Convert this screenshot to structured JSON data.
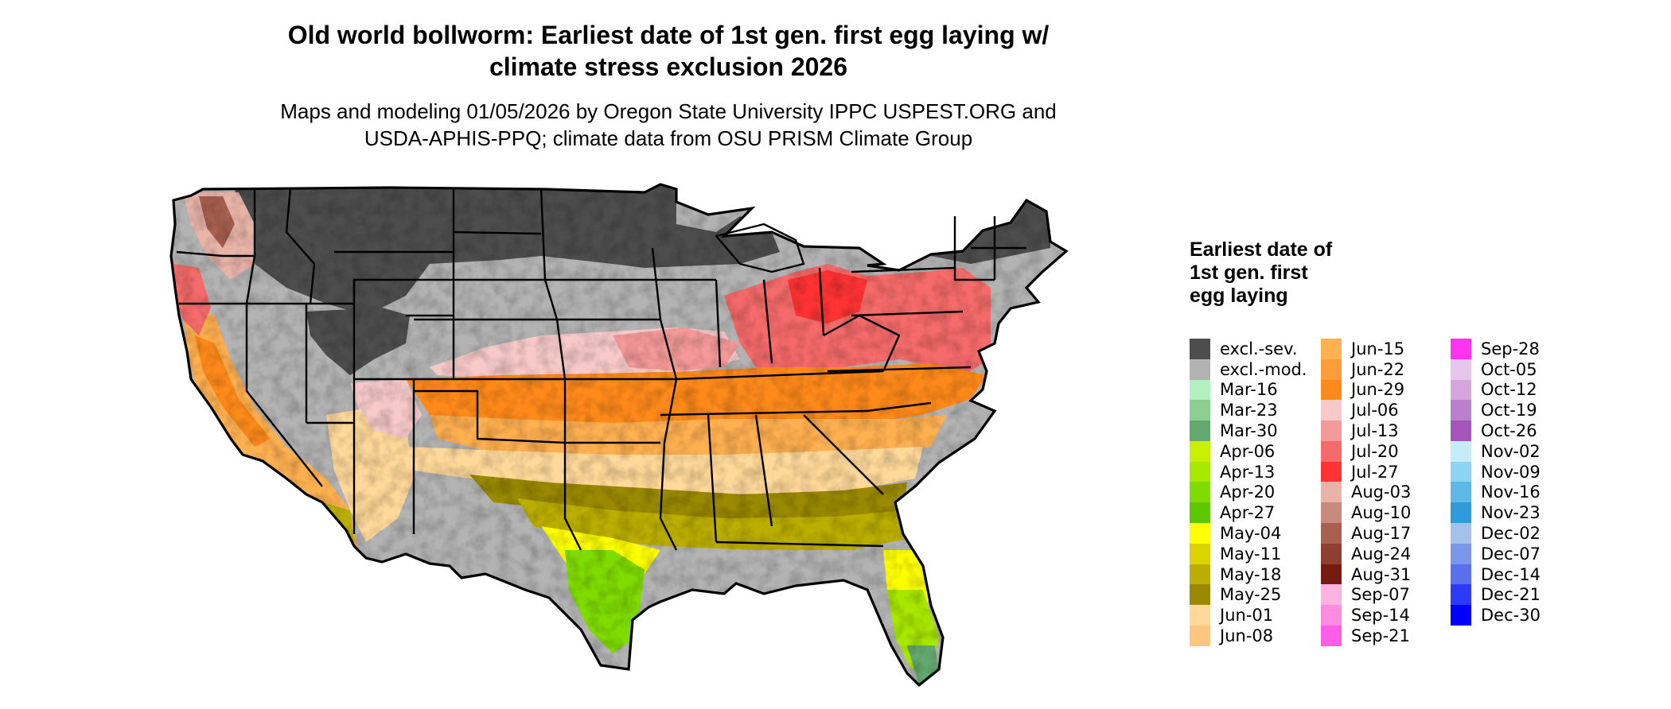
{
  "title_line1": "Old world bollworm: Earliest date of 1st gen. first egg laying w/",
  "title_line2": "climate stress exclusion 2026",
  "subtitle_line1": "Maps and modeling 01/05/2026 by Oregon State University IPPC USPEST.ORG and",
  "subtitle_line2": "USDA-APHIS-PPQ; climate data from OSU PRISM Climate Group",
  "legend": {
    "title": "Earliest date of 1st gen. first egg laying",
    "columns": [
      [
        {
          "label": "excl.-sev.",
          "color": "#4d4d4d"
        },
        {
          "label": "excl.-mod.",
          "color": "#b3b3b3"
        },
        {
          "label": "Mar-16",
          "color": "#b2f0bf"
        },
        {
          "label": "Mar-23",
          "color": "#8ccf91"
        },
        {
          "label": "Mar-30",
          "color": "#63a86e"
        },
        {
          "label": "Apr-06",
          "color": "#c8f000"
        },
        {
          "label": "Apr-13",
          "color": "#a8e800"
        },
        {
          "label": "Apr-20",
          "color": "#80dc00"
        },
        {
          "label": "Apr-27",
          "color": "#5cc800"
        },
        {
          "label": "May-04",
          "color": "#ffff00"
        },
        {
          "label": "May-11",
          "color": "#dcd400"
        },
        {
          "label": "May-18",
          "color": "#bbae00"
        },
        {
          "label": "May-25",
          "color": "#9a8a00"
        },
        {
          "label": "Jun-01",
          "color": "#ffd99a"
        },
        {
          "label": "Jun-08",
          "color": "#ffc680"
        }
      ],
      [
        {
          "label": "Jun-15",
          "color": "#ffb050"
        },
        {
          "label": "Jun-22",
          "color": "#ff9d3a"
        },
        {
          "label": "Jun-29",
          "color": "#ff8a1a"
        },
        {
          "label": "Jul-06",
          "color": "#f7c9c9"
        },
        {
          "label": "Jul-13",
          "color": "#f59a9a"
        },
        {
          "label": "Jul-20",
          "color": "#f56a6a"
        },
        {
          "label": "Jul-27",
          "color": "#ff3333"
        },
        {
          "label": "Aug-03",
          "color": "#e8b4a8"
        },
        {
          "label": "Aug-10",
          "color": "#c88a7c"
        },
        {
          "label": "Aug-17",
          "color": "#a86050"
        },
        {
          "label": "Aug-24",
          "color": "#8e3f30"
        },
        {
          "label": "Aug-31",
          "color": "#771a10"
        },
        {
          "label": "Sep-07",
          "color": "#ffb3e0"
        },
        {
          "label": "Sep-14",
          "color": "#ff8ce0"
        },
        {
          "label": "Sep-21",
          "color": "#ff5ce8"
        }
      ],
      [
        {
          "label": "Sep-28",
          "color": "#ff33f0"
        },
        {
          "label": "Oct-05",
          "color": "#e6c6ea"
        },
        {
          "label": "Oct-12",
          "color": "#d4a6dc"
        },
        {
          "label": "Oct-19",
          "color": "#bb80cc"
        },
        {
          "label": "Oct-26",
          "color": "#a455bb"
        },
        {
          "label": "Nov-02",
          "color": "#c6ecfa"
        },
        {
          "label": "Nov-09",
          "color": "#8ed4f2"
        },
        {
          "label": "Nov-16",
          "color": "#5cb8e6"
        },
        {
          "label": "Nov-23",
          "color": "#2e9cd8"
        },
        {
          "label": "Dec-02",
          "color": "#a6c0ec"
        },
        {
          "label": "Dec-07",
          "color": "#7c96ec"
        },
        {
          "label": "Dec-14",
          "color": "#5a6eee"
        },
        {
          "label": "Dec-21",
          "color": "#2c3cf2"
        },
        {
          "label": "Dec-30",
          "color": "#0000ff"
        }
      ]
    ]
  },
  "map": {
    "exclusion_severe_color": "#4d4d4d",
    "exclusion_moderate_color": "#b3b3b3",
    "border_color": "#000000"
  }
}
